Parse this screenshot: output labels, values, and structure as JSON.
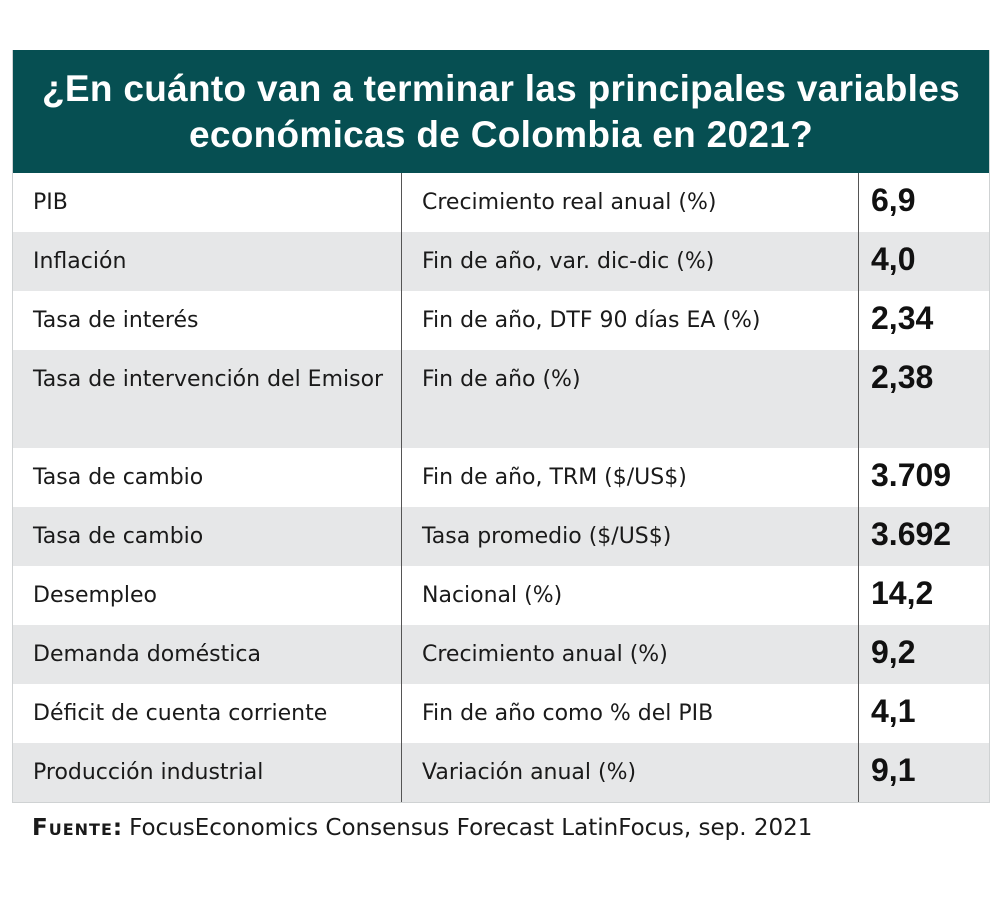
{
  "title": "¿En cuánto van a terminar las principales variables económicas de Colombia en 2021?",
  "rows": [
    {
      "variable": "PIB",
      "measure": "Crecimiento real anual (%)",
      "value": "6,9"
    },
    {
      "variable": "Inflación",
      "measure": "Fin de año, var. dic-dic (%)",
      "value": "4,0"
    },
    {
      "variable": "Tasa de interés",
      "measure": "Fin de año, DTF 90 días EA (%)",
      "value": "2,34"
    },
    {
      "variable": "Tasa de intervención del Emisor",
      "measure": "Fin de año (%)",
      "value": "2,38"
    },
    {
      "variable": "Tasa de cambio",
      "measure": "Fin de año, TRM ($/US$)",
      "value": "3.709"
    },
    {
      "variable": "Tasa de cambio",
      "measure": "Tasa promedio ($/US$)",
      "value": "3.692"
    },
    {
      "variable": "Desempleo",
      "measure": "Nacional (%)",
      "value": "14,2"
    },
    {
      "variable": "Demanda doméstica",
      "measure": "Crecimiento anual (%)",
      "value": "9,2"
    },
    {
      "variable": "Déficit de cuenta corriente",
      "measure": "Fin de año como % del PIB",
      "value": "4,1"
    },
    {
      "variable": "Producción industrial",
      "measure": "Variación anual (%)",
      "value": "9,1"
    }
  ],
  "source": {
    "label": "Fuente:",
    "text": "FocusEconomics Consensus Forecast LatinFocus, sep. 2021"
  },
  "colors": {
    "header": "#064f52",
    "alt_row": "#e6e7e8"
  }
}
